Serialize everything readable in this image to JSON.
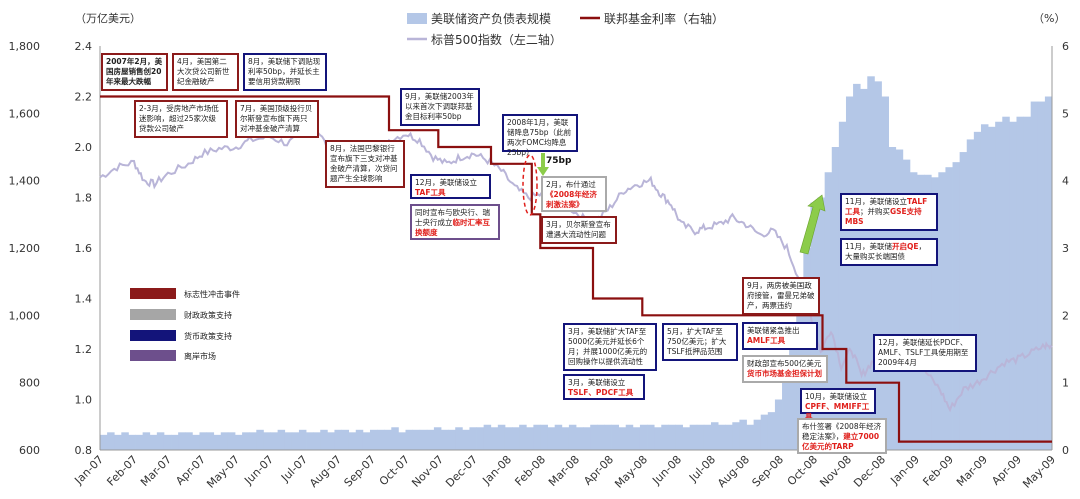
{
  "chart_data": {
    "type": "bar+line",
    "units": {
      "left": "（万亿美元）",
      "right": "（%）"
    },
    "legend": {
      "balance_sheet": "美联储资产负债表规模",
      "fed_rate": "联邦基金利率（右轴）",
      "sp500": "标普500指数（左二轴）"
    },
    "y_left_ticks": [
      "0.8",
      "1.0",
      "1.2",
      "1.4",
      "1.6",
      "1.8",
      "2.0",
      "2.2",
      "2.4"
    ],
    "y_left_range": [
      0.8,
      2.4
    ],
    "y_left2_ticks": [
      "600",
      "800",
      "1,000",
      "1,200",
      "1,400",
      "1,600",
      "1,800"
    ],
    "y_left2_range": [
      600,
      1800
    ],
    "y_right_ticks": [
      "0",
      "1",
      "2",
      "3",
      "4",
      "5",
      "6"
    ],
    "y_right_range": [
      0,
      6
    ],
    "x_labels": [
      "Jan-07",
      "Feb-07",
      "Mar-07",
      "Apr-07",
      "May-07",
      "Jun-07",
      "Jul-07",
      "Aug-07",
      "Sep-07",
      "Oct-07",
      "Nov-07",
      "Dec-07",
      "Jan-08",
      "Feb-08",
      "Mar-08",
      "Apr-08",
      "May-08",
      "Jun-08",
      "Jul-08",
      "Aug-08",
      "Sep-08",
      "Oct-08",
      "Nov-08",
      "Dec-08",
      "Jan-09",
      "Feb-09",
      "Mar-09",
      "Apr-09",
      "May-09"
    ],
    "balance_sheet_weekly": [
      0.86,
      0.87,
      0.86,
      0.87,
      0.86,
      0.86,
      0.87,
      0.86,
      0.87,
      0.86,
      0.86,
      0.87,
      0.87,
      0.86,
      0.87,
      0.87,
      0.86,
      0.87,
      0.87,
      0.86,
      0.87,
      0.87,
      0.88,
      0.87,
      0.87,
      0.88,
      0.87,
      0.87,
      0.88,
      0.87,
      0.87,
      0.88,
      0.87,
      0.88,
      0.88,
      0.87,
      0.88,
      0.87,
      0.88,
      0.88,
      0.88,
      0.89,
      0.87,
      0.88,
      0.88,
      0.88,
      0.88,
      0.89,
      0.88,
      0.88,
      0.89,
      0.88,
      0.89,
      0.89,
      0.9,
      0.89,
      0.9,
      0.89,
      0.89,
      0.9,
      0.89,
      0.9,
      0.9,
      0.89,
      0.9,
      0.89,
      0.9,
      0.89,
      0.89,
      0.9,
      0.9,
      0.9,
      0.9,
      0.89,
      0.9,
      0.89,
      0.9,
      0.9,
      0.89,
      0.9,
      0.9,
      0.9,
      0.89,
      0.9,
      0.9,
      0.9,
      0.91,
      0.9,
      0.9,
      0.91,
      0.92,
      0.9,
      0.92,
      0.94,
      0.95,
      1.0,
      1.08,
      1.22,
      1.4,
      1.6,
      1.78,
      1.8,
      1.9,
      2.0,
      2.1,
      2.2,
      2.25,
      2.23,
      2.28,
      2.26,
      2.2,
      2.0,
      1.99,
      1.95,
      1.9,
      1.89,
      1.89,
      1.88,
      1.9,
      1.92,
      1.94,
      1.98,
      2.03,
      2.06,
      2.09,
      2.08,
      2.1,
      2.12,
      2.1,
      2.12,
      2.12,
      2.18,
      2.18,
      2.2
    ],
    "fed_funds_rate": [
      {
        "from": "Jan-07",
        "rate": 5.25
      },
      {
        "from": "mid Sep-07",
        "rate": 4.75
      },
      {
        "from": "end Oct-07",
        "rate": 4.5
      },
      {
        "from": "mid Dec-07",
        "rate": 4.25
      },
      {
        "from": "late Jan-08",
        "rate": 3.5
      },
      {
        "from": "end Jan-08",
        "rate": 3.0
      },
      {
        "from": "mid Mar-08",
        "rate": 2.25
      },
      {
        "from": "end Apr-08",
        "rate": 2.0
      },
      {
        "from": "early Oct-08",
        "rate": 1.5
      },
      {
        "from": "end Oct-08",
        "rate": 1.0
      },
      {
        "from": "mid Dec-08",
        "rate": 0.125
      }
    ],
    "sp500_path": [
      [
        0,
        1410
      ],
      [
        0.5,
        1440
      ],
      [
        1,
        1455
      ],
      [
        1.3,
        1400
      ],
      [
        1.6,
        1390
      ],
      [
        2,
        1420
      ],
      [
        2.6,
        1450
      ],
      [
        3,
        1480
      ],
      [
        3.5,
        1495
      ],
      [
        4,
        1500
      ],
      [
        4.4,
        1520
      ],
      [
        5,
        1530
      ],
      [
        5.5,
        1510
      ],
      [
        6,
        1540
      ],
      [
        6.4,
        1550
      ],
      [
        6.8,
        1480
      ],
      [
        7,
        1420
      ],
      [
        7.3,
        1450
      ],
      [
        7.6,
        1470
      ],
      [
        8,
        1480
      ],
      [
        8.5,
        1520
      ],
      [
        9,
        1540
      ],
      [
        9.4,
        1520
      ],
      [
        9.8,
        1470
      ],
      [
        10.2,
        1450
      ],
      [
        10.6,
        1470
      ],
      [
        11,
        1480
      ],
      [
        11.4,
        1460
      ],
      [
        11.8,
        1430
      ],
      [
        12.2,
        1380
      ],
      [
        12.6,
        1350
      ],
      [
        13,
        1360
      ],
      [
        13.4,
        1330
      ],
      [
        13.8,
        1320
      ],
      [
        14.2,
        1290
      ],
      [
        14.6,
        1280
      ],
      [
        15,
        1320
      ],
      [
        15.4,
        1370
      ],
      [
        15.8,
        1390
      ],
      [
        16.2,
        1400
      ],
      [
        16.5,
        1360
      ],
      [
        16.8,
        1330
      ],
      [
        17.1,
        1270
      ],
      [
        17.5,
        1250
      ],
      [
        17.8,
        1260
      ],
      [
        18.2,
        1270
      ],
      [
        18.6,
        1290
      ],
      [
        19,
        1270
      ],
      [
        19.4,
        1240
      ],
      [
        19.8,
        1250
      ],
      [
        20.2,
        1200
      ],
      [
        20.6,
        1100
      ],
      [
        20.9,
        1000
      ],
      [
        21.2,
        890
      ],
      [
        21.5,
        960
      ],
      [
        21.8,
        850
      ],
      [
        22.1,
        900
      ],
      [
        22.4,
        820
      ],
      [
        22.7,
        860
      ],
      [
        23,
        890
      ],
      [
        23.3,
        900
      ],
      [
        23.6,
        930
      ],
      [
        24,
        870
      ],
      [
        24.3,
        830
      ],
      [
        24.7,
        780
      ],
      [
        25,
        720
      ],
      [
        25.4,
        780
      ],
      [
        25.8,
        800
      ],
      [
        26.2,
        830
      ],
      [
        26.6,
        860
      ],
      [
        27,
        870
      ],
      [
        27.4,
        890
      ],
      [
        27.8,
        910
      ],
      [
        28,
        905
      ]
    ]
  },
  "legend_box": {
    "items": [
      {
        "label": "标志性冲击事件",
        "color": "#8b1a1a"
      },
      {
        "label": "财政政策支持",
        "color": "#a6a6a6"
      },
      {
        "label": "货币政策支持",
        "color": "#13147a"
      },
      {
        "label": "离岸市场",
        "color": "#6d4f8c"
      }
    ]
  },
  "arrow_label": "75bp",
  "annotations": {
    "a1": "2007年2月，美国房屋销售创20年来最大跌幅",
    "a2": "4月，美国第二大次贷公司新世纪金融破产",
    "a3": "8月，美联储下调贴现利率50bp，并延长主要信用贷款期限",
    "a4": "2-3月，受房地产市场低迷影响，超过25家次级贷款公司破产",
    "a5": "7月，美国顶级投行贝尔斯登宣布旗下两只对冲基金破产清算",
    "a6": "8月，法国巴黎银行宣布旗下三支对冲基金破产清算，次贷问题产生全球影响",
    "a7": "9月，美联储2003年以来首次下调联邦基金目标利率50bp",
    "a8": "12月，美联储设立",
    "a8r": "TAF工具",
    "a9a": "同时宣布与欧央行、瑞士央行成立",
    "a9r": "临时汇率互换额度",
    "a10": "2008年1月，美联储降息75bp（此前两次FOMC均降息25bp）",
    "a11a": "2月，布什通过",
    "a11r": "《2008年经济刺激法案》",
    "a12": "3月，贝尔斯登宣布遭遇大流动性问题",
    "a13": "3月，美联储扩大TAF至5000亿美元并延长6个月；并展1000亿美元的回购操作以提供流动性",
    "a14": "5月，扩大TAF至750亿美元；扩大TSLF抵押品范围",
    "a15a": "3月，美联储设立",
    "a15r": "TSLF、PDCF工具",
    "a16": "9月，两房被美国政府接管，雷曼兄弟破产，两票违约",
    "a17a": "美联储紧急推出",
    "a17r": "AMLF工具",
    "a18a": "财政部宣布500亿美元",
    "a18r": "货币市场基金担保计划",
    "a19a": "10月，美联储设立",
    "a19r": "CPFF、MMIFF工具",
    "a20a": "布什签署《2008年经济稳定法案》，",
    "a20r": "建立7000亿美元的TARP",
    "a21a": "11月，美联储设立",
    "a21r": "TALF工具",
    "a21b": "；并购买",
    "a21r2": "GSE支持MBS",
    "a22a": "11月，美联储",
    "a22r": "开启QE",
    "a22b": "，大量购买长端国债",
    "a23": "12月，美联储延长PDCF、AMLF、TSLF工具使用期至2009年4月"
  }
}
